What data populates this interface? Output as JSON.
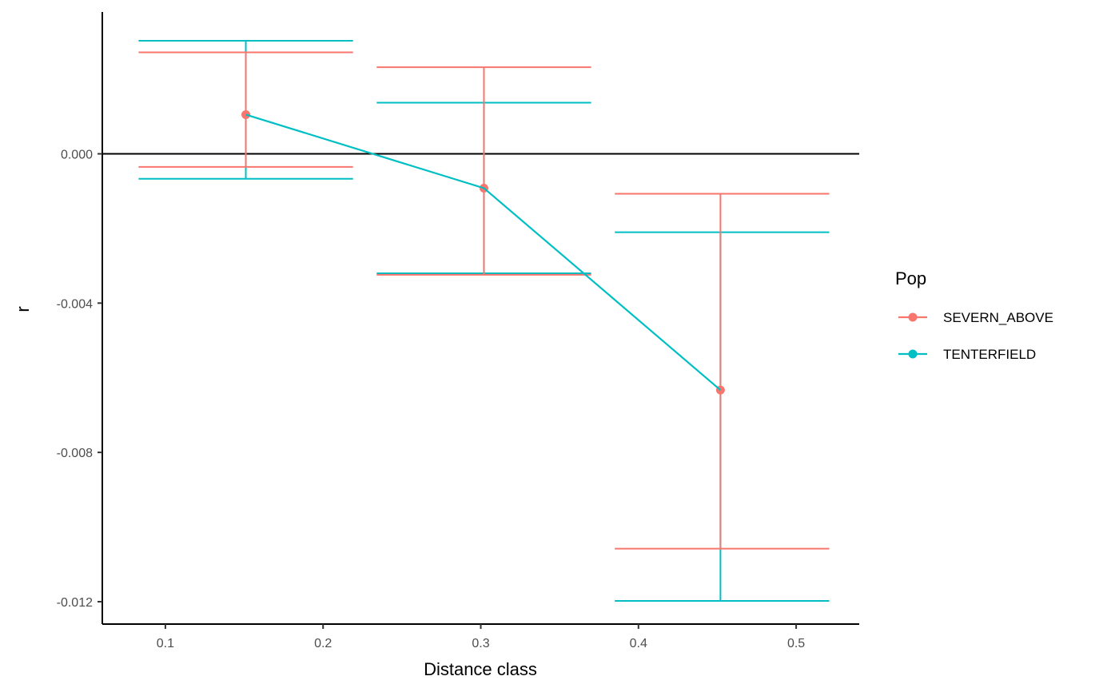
{
  "chart_data": {
    "type": "line",
    "title": "",
    "xlabel": "Distance class",
    "ylabel": "r",
    "xlim": [
      0.06,
      0.54
    ],
    "ylim": [
      -0.0126,
      0.0038
    ],
    "x_ticks": [
      0.1,
      0.2,
      0.3,
      0.4,
      0.5
    ],
    "x_tick_labels": [
      "0.1",
      "0.2",
      "0.3",
      "0.4",
      "0.5"
    ],
    "y_ticks": [
      0.0,
      -0.004,
      -0.008,
      -0.012
    ],
    "y_tick_labels": [
      "0.000",
      "-0.004",
      "-0.008",
      "-0.012"
    ],
    "hline": 0,
    "grid": false,
    "legend": {
      "title": "Pop",
      "position": "right"
    },
    "series": [
      {
        "name": "SEVERN_ABOVE",
        "color": "#F8766D",
        "points": [
          {
            "x": 0.151,
            "y": 0.00105,
            "lower": -0.00035,
            "upper": 0.00272
          },
          {
            "x": 0.302,
            "y": -0.00092,
            "lower": -0.00324,
            "upper": 0.00232
          },
          {
            "x": 0.452,
            "y": -0.00633,
            "lower": -0.01058,
            "upper": -0.00107
          }
        ],
        "errorbar_xrange": [
          [
            0.083,
            0.219
          ],
          [
            0.234,
            0.37
          ],
          [
            0.385,
            0.521
          ]
        ]
      },
      {
        "name": "TENTERFIELD",
        "color": "#00BFC4",
        "points": [
          {
            "x": 0.151,
            "y": 0.00105,
            "lower": -0.00067,
            "upper": 0.00303
          },
          {
            "x": 0.302,
            "y": -0.00092,
            "lower": -0.0032,
            "upper": 0.00137
          },
          {
            "x": 0.452,
            "y": -0.00633,
            "lower": -0.01198,
            "upper": -0.0021
          }
        ],
        "errorbar_xrange": [
          [
            0.083,
            0.219
          ],
          [
            0.234,
            0.37
          ],
          [
            0.385,
            0.521
          ]
        ]
      }
    ]
  }
}
